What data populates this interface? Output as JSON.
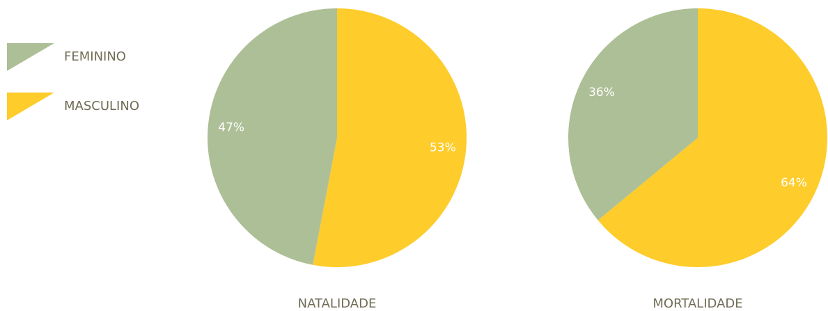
{
  "legend": {
    "categories": [
      "FEMININO",
      "MASCULINO"
    ],
    "colors": [
      "#adbf96",
      "#fecc2b"
    ]
  },
  "chart_data": [
    {
      "type": "pie",
      "title": "NATALIDADE",
      "values": [
        47,
        53
      ],
      "value_labels": [
        "47%",
        "53%"
      ]
    },
    {
      "type": "pie",
      "title": "MORTALIDADE",
      "values": [
        36,
        64
      ],
      "value_labels": [
        "36%",
        "64%"
      ]
    }
  ]
}
